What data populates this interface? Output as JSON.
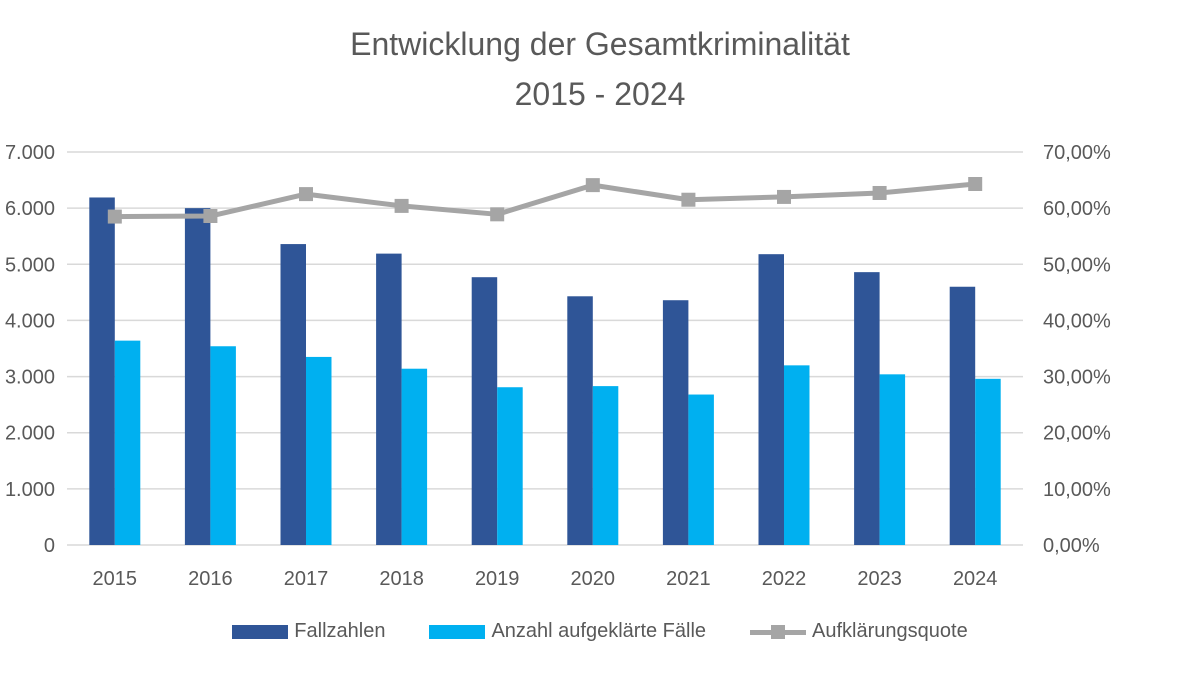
{
  "chart_data": {
    "type": "bar",
    "title": "Entwicklung der Gesamtkriminalität",
    "subtitle": "2015 - 2024",
    "categories": [
      "2015",
      "2016",
      "2017",
      "2018",
      "2019",
      "2020",
      "2021",
      "2022",
      "2023",
      "2024"
    ],
    "series": [
      {
        "name": "Fallzahlen",
        "type": "bar",
        "axis": "left",
        "color": "#2F5597",
        "values": [
          6190,
          6000,
          5360,
          5190,
          4770,
          4430,
          4360,
          5180,
          4860,
          4600
        ]
      },
      {
        "name": "Anzahl aufgeklärte Fälle",
        "type": "bar",
        "axis": "left",
        "color": "#00B0F0",
        "values": [
          3640,
          3540,
          3350,
          3140,
          2810,
          2830,
          2680,
          3200,
          3040,
          2960
        ]
      },
      {
        "name": "Aufklärungsquote",
        "type": "line",
        "axis": "right",
        "color": "#A5A5A5",
        "marker": "square",
        "values": [
          58.5,
          58.6,
          62.5,
          60.4,
          58.9,
          64.1,
          61.5,
          62.0,
          62.7,
          64.3
        ]
      }
    ],
    "ylim": [
      0,
      7000
    ],
    "y_ticks": [
      "0",
      "1.000",
      "2.000",
      "3.000",
      "4.000",
      "5.000",
      "6.000",
      "7.000"
    ],
    "y2lim": [
      0,
      70
    ],
    "y2_ticks": [
      "0,00%",
      "10,00%",
      "20,00%",
      "30,00%",
      "40,00%",
      "50,00%",
      "60,00%",
      "70,00%"
    ],
    "grid": true,
    "legend": "bottom"
  }
}
